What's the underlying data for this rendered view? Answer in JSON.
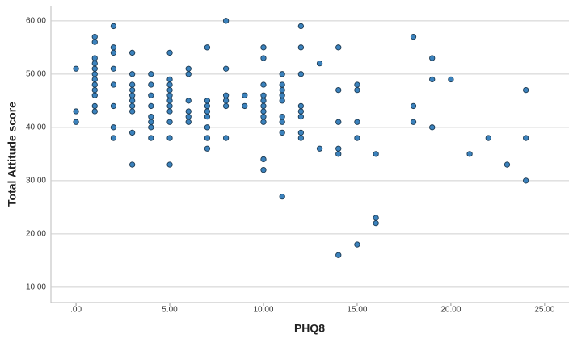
{
  "chart_data": {
    "type": "scatter",
    "xlabel": "PHQ8",
    "ylabel": "Total Attitude score",
    "color": "#3b82bd",
    "x": [
      0,
      0,
      0,
      1,
      1,
      1,
      1,
      1,
      1,
      1,
      1,
      1,
      1,
      1,
      1,
      2,
      2,
      2,
      2,
      2,
      2,
      2,
      2,
      3,
      3,
      3,
      3,
      3,
      3,
      3,
      3,
      3,
      3,
      4,
      4,
      4,
      4,
      4,
      4,
      4,
      4,
      5,
      5,
      5,
      5,
      5,
      5,
      5,
      5,
      5,
      5,
      5,
      6,
      6,
      6,
      6,
      6,
      6,
      7,
      7,
      7,
      7,
      7,
      7,
      7,
      7,
      8,
      8,
      8,
      8,
      8,
      8,
      9,
      9,
      10,
      10,
      10,
      10,
      10,
      10,
      10,
      10,
      10,
      10,
      10,
      11,
      11,
      11,
      11,
      11,
      11,
      11,
      11,
      11,
      12,
      12,
      12,
      12,
      12,
      12,
      12,
      12,
      13,
      13,
      14,
      14,
      14,
      14,
      14,
      14,
      15,
      15,
      15,
      15,
      15,
      16,
      16,
      16,
      18,
      18,
      18,
      19,
      19,
      19,
      20,
      21,
      22,
      23,
      24,
      24,
      24
    ],
    "values": [
      51,
      43,
      41,
      57,
      56,
      53,
      52,
      51,
      50,
      49,
      48,
      47,
      46,
      44,
      43,
      59,
      55,
      54,
      51,
      48,
      44,
      40,
      38,
      54,
      50,
      48,
      47,
      46,
      45,
      44,
      43,
      39,
      33,
      50,
      48,
      46,
      44,
      42,
      41,
      40,
      38,
      54,
      49,
      48,
      47,
      46,
      45,
      44,
      43,
      41,
      38,
      33,
      51,
      50,
      45,
      43,
      42,
      41,
      55,
      45,
      44,
      43,
      42,
      40,
      38,
      36,
      60,
      51,
      46,
      45,
      44,
      38,
      46,
      44,
      55,
      53,
      48,
      46,
      45,
      44,
      43,
      42,
      41,
      34,
      32,
      50,
      48,
      47,
      46,
      45,
      42,
      41,
      39,
      27,
      59,
      55,
      50,
      44,
      43,
      42,
      39,
      38,
      52,
      36,
      55,
      47,
      41,
      36,
      35,
      16,
      48,
      47,
      41,
      38,
      18,
      35,
      23,
      22,
      57,
      44,
      41,
      53,
      49,
      40,
      49,
      35,
      38,
      33,
      47,
      38,
      30
    ],
    "xlim": [
      -1.34,
      26.3
    ],
    "ylim": [
      7.1,
      62.7
    ],
    "xticks": [
      {
        "value": 0,
        "label": ".00"
      },
      {
        "value": 5,
        "label": "5.00"
      },
      {
        "value": 10,
        "label": "10.00"
      },
      {
        "value": 15,
        "label": "15.00"
      },
      {
        "value": 20,
        "label": "20.00"
      },
      {
        "value": 25,
        "label": "25.00"
      }
    ],
    "yticks": [
      {
        "value": 10,
        "label": "10.00"
      },
      {
        "value": 20,
        "label": "20.00"
      },
      {
        "value": 30,
        "label": "30.00"
      },
      {
        "value": 40,
        "label": "40.00"
      },
      {
        "value": 50,
        "label": "50.00"
      },
      {
        "value": 60,
        "label": "60.00"
      }
    ],
    "grid": true
  }
}
